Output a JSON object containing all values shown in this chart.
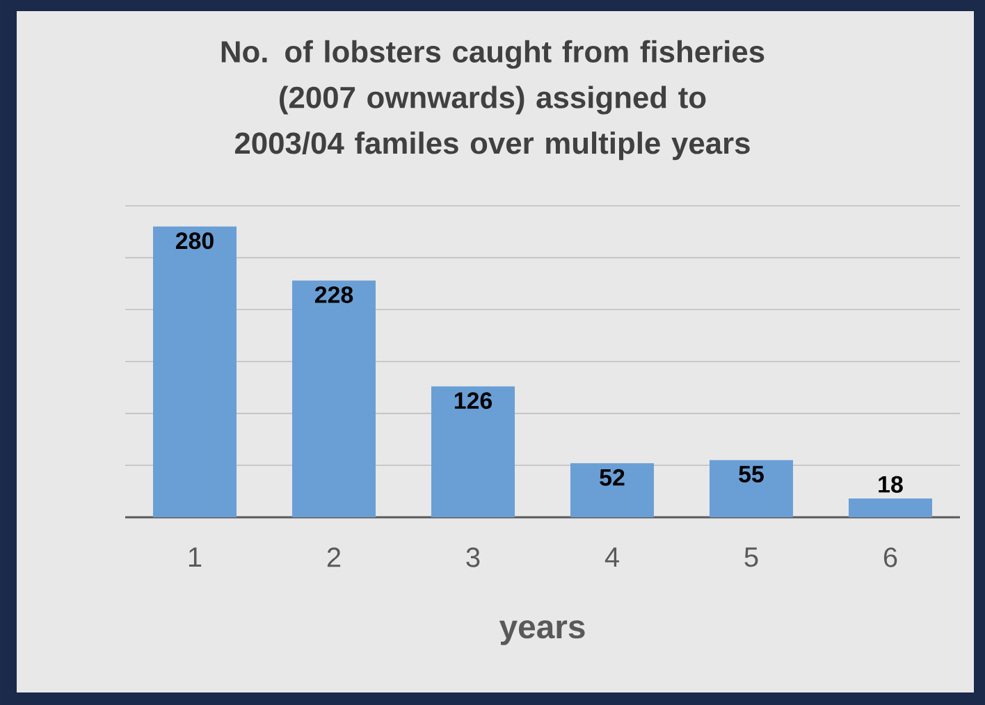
{
  "chart_data": {
    "type": "bar",
    "title": "No. of lobsters caught from fisheries (2007 ownwards) assigned to 2003/04 familes over multiple years",
    "xlabel": "years",
    "categories": [
      "1",
      "2",
      "3",
      "4",
      "5",
      "6"
    ],
    "values": [
      280,
      228,
      126,
      52,
      55,
      18
    ],
    "color": "#6a9fd5",
    "ylim": [
      0,
      300
    ],
    "yticks": [
      {
        "value": 0,
        "label": null
      },
      {
        "value": 50,
        "label": null
      },
      {
        "value": 100,
        "label": null
      },
      {
        "value": 150,
        "label": null
      },
      {
        "value": 200,
        "label": null
      },
      {
        "value": 250,
        "label": null
      },
      {
        "value": 300,
        "label": null
      }
    ],
    "grid": "y",
    "tick_labels": "x",
    "data_labels": true
  }
}
